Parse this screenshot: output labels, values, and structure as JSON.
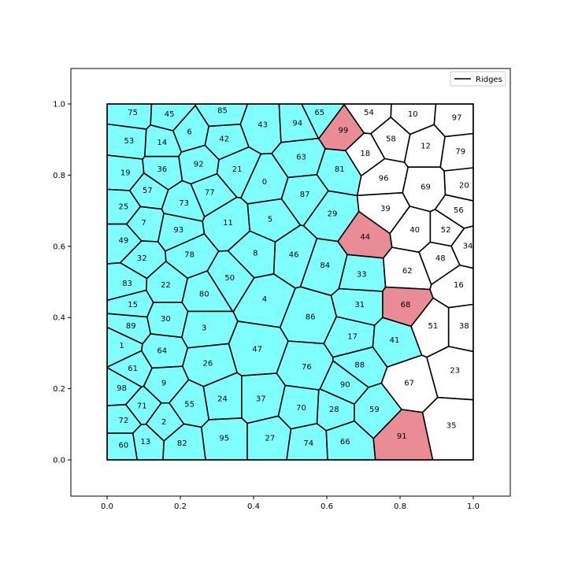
{
  "chart_data": {
    "type": "voronoi",
    "xlim": [
      -0.1,
      1.1
    ],
    "ylim": [
      -0.1,
      1.1
    ],
    "xticks": [
      "0.0",
      "0.2",
      "0.4",
      "0.6",
      "0.8",
      "1.0"
    ],
    "yticks": [
      "0.0",
      "0.2",
      "0.4",
      "0.6",
      "0.8",
      "1.0"
    ],
    "grid": false,
    "legend": {
      "position": "top-right",
      "entries": [
        "Ridges"
      ]
    },
    "colors": {
      "cyan": "#80ffff",
      "pink": "#ea8c96",
      "white": "#ffffff",
      "edge": "#000000"
    },
    "cells": [
      {
        "label": "0",
        "x": 0.43,
        "y": 0.78,
        "color": "cyan"
      },
      {
        "label": "1",
        "x": 0.04,
        "y": 0.32,
        "color": "cyan"
      },
      {
        "label": "2",
        "x": 0.155,
        "y": 0.105,
        "color": "cyan"
      },
      {
        "label": "3",
        "x": 0.265,
        "y": 0.37,
        "color": "cyan"
      },
      {
        "label": "4",
        "x": 0.43,
        "y": 0.45,
        "color": "cyan"
      },
      {
        "label": "5",
        "x": 0.445,
        "y": 0.675,
        "color": "cyan"
      },
      {
        "label": "6",
        "x": 0.225,
        "y": 0.92,
        "color": "cyan"
      },
      {
        "label": "7",
        "x": 0.1,
        "y": 0.665,
        "color": "cyan"
      },
      {
        "label": "8",
        "x": 0.405,
        "y": 0.58,
        "color": "cyan"
      },
      {
        "label": "9",
        "x": 0.155,
        "y": 0.215,
        "color": "cyan"
      },
      {
        "label": "10",
        "x": 0.835,
        "y": 0.97,
        "color": "white"
      },
      {
        "label": "11",
        "x": 0.33,
        "y": 0.665,
        "color": "cyan"
      },
      {
        "label": "12",
        "x": 0.87,
        "y": 0.88,
        "color": "white"
      },
      {
        "label": "13",
        "x": 0.105,
        "y": 0.05,
        "color": "cyan"
      },
      {
        "label": "14",
        "x": 0.15,
        "y": 0.89,
        "color": "cyan"
      },
      {
        "label": "15",
        "x": 0.07,
        "y": 0.435,
        "color": "cyan"
      },
      {
        "label": "16",
        "x": 0.96,
        "y": 0.49,
        "color": "white"
      },
      {
        "label": "17",
        "x": 0.67,
        "y": 0.345,
        "color": "cyan"
      },
      {
        "label": "18",
        "x": 0.705,
        "y": 0.86,
        "color": "white"
      },
      {
        "label": "19",
        "x": 0.05,
        "y": 0.805,
        "color": "cyan"
      },
      {
        "label": "20",
        "x": 0.975,
        "y": 0.77,
        "color": "white"
      },
      {
        "label": "21",
        "x": 0.355,
        "y": 0.815,
        "color": "cyan"
      },
      {
        "label": "22",
        "x": 0.16,
        "y": 0.49,
        "color": "cyan"
      },
      {
        "label": "23",
        "x": 0.95,
        "y": 0.25,
        "color": "white"
      },
      {
        "label": "24",
        "x": 0.315,
        "y": 0.17,
        "color": "cyan"
      },
      {
        "label": "25",
        "x": 0.045,
        "y": 0.71,
        "color": "cyan"
      },
      {
        "label": "26",
        "x": 0.275,
        "y": 0.27,
        "color": "cyan"
      },
      {
        "label": "27",
        "x": 0.445,
        "y": 0.06,
        "color": "cyan"
      },
      {
        "label": "28",
        "x": 0.62,
        "y": 0.14,
        "color": "cyan"
      },
      {
        "label": "29",
        "x": 0.615,
        "y": 0.69,
        "color": "cyan"
      },
      {
        "label": "30",
        "x": 0.16,
        "y": 0.395,
        "color": "cyan"
      },
      {
        "label": "31",
        "x": 0.69,
        "y": 0.435,
        "color": "cyan"
      },
      {
        "label": "32",
        "x": 0.095,
        "y": 0.565,
        "color": "cyan"
      },
      {
        "label": "33",
        "x": 0.695,
        "y": 0.52,
        "color": "cyan"
      },
      {
        "label": "34",
        "x": 0.985,
        "y": 0.6,
        "color": "white"
      },
      {
        "label": "35",
        "x": 0.94,
        "y": 0.095,
        "color": "white"
      },
      {
        "label": "36",
        "x": 0.15,
        "y": 0.815,
        "color": "cyan"
      },
      {
        "label": "37",
        "x": 0.42,
        "y": 0.17,
        "color": "cyan"
      },
      {
        "label": "38",
        "x": 0.975,
        "y": 0.375,
        "color": "white"
      },
      {
        "label": "39",
        "x": 0.76,
        "y": 0.705,
        "color": "white"
      },
      {
        "label": "40",
        "x": 0.84,
        "y": 0.645,
        "color": "white"
      },
      {
        "label": "41",
        "x": 0.785,
        "y": 0.335,
        "color": "cyan"
      },
      {
        "label": "42",
        "x": 0.32,
        "y": 0.9,
        "color": "cyan"
      },
      {
        "label": "43",
        "x": 0.425,
        "y": 0.94,
        "color": "cyan"
      },
      {
        "label": "44",
        "x": 0.705,
        "y": 0.625,
        "color": "pink"
      },
      {
        "label": "45",
        "x": 0.17,
        "y": 0.97,
        "color": "cyan"
      },
      {
        "label": "46",
        "x": 0.51,
        "y": 0.575,
        "color": "cyan"
      },
      {
        "label": "47",
        "x": 0.41,
        "y": 0.31,
        "color": "cyan"
      },
      {
        "label": "48",
        "x": 0.91,
        "y": 0.565,
        "color": "white"
      },
      {
        "label": "49",
        "x": 0.045,
        "y": 0.615,
        "color": "cyan"
      },
      {
        "label": "50",
        "x": 0.335,
        "y": 0.51,
        "color": "cyan"
      },
      {
        "label": "51",
        "x": 0.89,
        "y": 0.375,
        "color": "white"
      },
      {
        "label": "52",
        "x": 0.925,
        "y": 0.645,
        "color": "white"
      },
      {
        "label": "53",
        "x": 0.06,
        "y": 0.895,
        "color": "cyan"
      },
      {
        "label": "54",
        "x": 0.715,
        "y": 0.975,
        "color": "white"
      },
      {
        "label": "55",
        "x": 0.225,
        "y": 0.155,
        "color": "cyan"
      },
      {
        "label": "56",
        "x": 0.96,
        "y": 0.7,
        "color": "white"
      },
      {
        "label": "57",
        "x": 0.11,
        "y": 0.755,
        "color": "cyan"
      },
      {
        "label": "58",
        "x": 0.775,
        "y": 0.9,
        "color": "white"
      },
      {
        "label": "59",
        "x": 0.73,
        "y": 0.14,
        "color": "cyan"
      },
      {
        "label": "60",
        "x": 0.045,
        "y": 0.04,
        "color": "cyan"
      },
      {
        "label": "61",
        "x": 0.07,
        "y": 0.255,
        "color": "cyan"
      },
      {
        "label": "62",
        "x": 0.82,
        "y": 0.53,
        "color": "white"
      },
      {
        "label": "63",
        "x": 0.53,
        "y": 0.85,
        "color": "cyan"
      },
      {
        "label": "64",
        "x": 0.15,
        "y": 0.305,
        "color": "cyan"
      },
      {
        "label": "65",
        "x": 0.58,
        "y": 0.975,
        "color": "cyan"
      },
      {
        "label": "66",
        "x": 0.65,
        "y": 0.05,
        "color": "cyan"
      },
      {
        "label": "67",
        "x": 0.825,
        "y": 0.215,
        "color": "white"
      },
      {
        "label": "68",
        "x": 0.815,
        "y": 0.435,
        "color": "pink"
      },
      {
        "label": "69",
        "x": 0.87,
        "y": 0.765,
        "color": "white"
      },
      {
        "label": "70",
        "x": 0.53,
        "y": 0.145,
        "color": "cyan"
      },
      {
        "label": "71",
        "x": 0.095,
        "y": 0.15,
        "color": "cyan"
      },
      {
        "label": "72",
        "x": 0.045,
        "y": 0.11,
        "color": "cyan"
      },
      {
        "label": "73",
        "x": 0.21,
        "y": 0.72,
        "color": "cyan"
      },
      {
        "label": "74",
        "x": 0.55,
        "y": 0.045,
        "color": "cyan"
      },
      {
        "label": "75",
        "x": 0.07,
        "y": 0.975,
        "color": "cyan"
      },
      {
        "label": "76",
        "x": 0.545,
        "y": 0.26,
        "color": "cyan"
      },
      {
        "label": "77",
        "x": 0.28,
        "y": 0.75,
        "color": "cyan"
      },
      {
        "label": "78",
        "x": 0.225,
        "y": 0.575,
        "color": "cyan"
      },
      {
        "label": "79",
        "x": 0.965,
        "y": 0.865,
        "color": "white"
      },
      {
        "label": "80",
        "x": 0.265,
        "y": 0.465,
        "color": "cyan"
      },
      {
        "label": "81",
        "x": 0.635,
        "y": 0.815,
        "color": "cyan"
      },
      {
        "label": "82",
        "x": 0.205,
        "y": 0.045,
        "color": "cyan"
      },
      {
        "label": "83",
        "x": 0.055,
        "y": 0.495,
        "color": "cyan"
      },
      {
        "label": "84",
        "x": 0.595,
        "y": 0.545,
        "color": "cyan"
      },
      {
        "label": "85",
        "x": 0.315,
        "y": 0.98,
        "color": "cyan"
      },
      {
        "label": "86",
        "x": 0.555,
        "y": 0.4,
        "color": "cyan"
      },
      {
        "label": "87",
        "x": 0.54,
        "y": 0.745,
        "color": "cyan"
      },
      {
        "label": "88",
        "x": 0.69,
        "y": 0.265,
        "color": "cyan"
      },
      {
        "label": "89",
        "x": 0.065,
        "y": 0.375,
        "color": "cyan"
      },
      {
        "label": "90",
        "x": 0.65,
        "y": 0.21,
        "color": "cyan"
      },
      {
        "label": "91",
        "x": 0.805,
        "y": 0.065,
        "color": "pink"
      },
      {
        "label": "92",
        "x": 0.25,
        "y": 0.83,
        "color": "cyan"
      },
      {
        "label": "93",
        "x": 0.195,
        "y": 0.645,
        "color": "cyan"
      },
      {
        "label": "94",
        "x": 0.52,
        "y": 0.945,
        "color": "cyan"
      },
      {
        "label": "95",
        "x": 0.32,
        "y": 0.06,
        "color": "cyan"
      },
      {
        "label": "96",
        "x": 0.755,
        "y": 0.79,
        "color": "white"
      },
      {
        "label": "97",
        "x": 0.955,
        "y": 0.96,
        "color": "white"
      },
      {
        "label": "98",
        "x": 0.04,
        "y": 0.2,
        "color": "cyan"
      },
      {
        "label": "99",
        "x": 0.645,
        "y": 0.925,
        "color": "pink"
      }
    ]
  }
}
